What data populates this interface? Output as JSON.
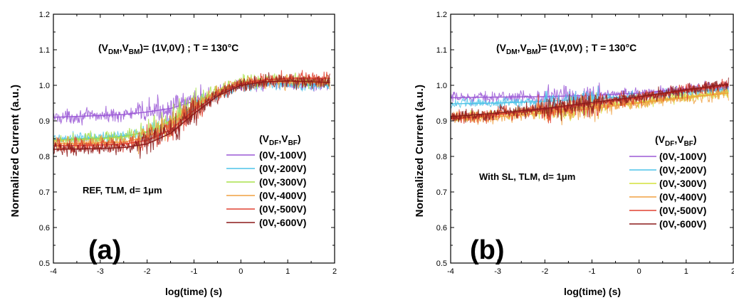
{
  "chart_data": [
    {
      "type": "line",
      "panel_label": "(a)",
      "condition": {
        "prefix": "(V",
        "s1": "DM",
        "mid": ",V",
        "s2": "BM",
        "suffix": ")= (1V,0V) ; T = 130°C"
      },
      "sample_label": "REF, TLM, d= 1μm",
      "xlabel": "log(time) (s)",
      "ylabel": "Normalized Current (a.u.)",
      "xlim": [
        -4,
        2
      ],
      "ylim": [
        0.5,
        1.2
      ],
      "xticks": [
        "-4",
        "-3",
        "-2",
        "-1",
        "0",
        "1",
        "2"
      ],
      "yticks": [
        "0.5",
        "0.6",
        "0.7",
        "0.8",
        "0.9",
        "1.0",
        "1.1",
        "1.2"
      ],
      "legend_title": {
        "prefix": "(V",
        "s1": "DF",
        "mid": ",V",
        "s2": "BF",
        "suffix": ")"
      },
      "series": [
        {
          "name": "(0V,-100V)",
          "color": "#9b59d6",
          "noise": 0.012,
          "x": [
            -4,
            -3,
            -2.5,
            -2,
            -1.5,
            -1,
            -0.5,
            0,
            0.5,
            1,
            1.5,
            1.9
          ],
          "y": [
            0.91,
            0.915,
            0.918,
            0.925,
            0.935,
            0.955,
            0.98,
            1.0,
            1.005,
            1.005,
            1.003,
            1.003
          ]
        },
        {
          "name": "(0V,-200V)",
          "color": "#4dc3e8",
          "noise": 0.011,
          "x": [
            -4,
            -3,
            -2.5,
            -2,
            -1.5,
            -1,
            -0.5,
            0,
            0.5,
            1,
            1.5,
            1.9
          ],
          "y": [
            0.848,
            0.852,
            0.858,
            0.868,
            0.89,
            0.935,
            0.972,
            0.998,
            1.005,
            1.003,
            1.0,
            1.0
          ]
        },
        {
          "name": "(0V,-300V)",
          "color": "#a8e04a",
          "noise": 0.012,
          "x": [
            -4,
            -3,
            -2.5,
            -2,
            -1.5,
            -1,
            -0.5,
            0,
            0.5,
            1,
            1.5,
            1.9
          ],
          "y": [
            0.845,
            0.85,
            0.855,
            0.87,
            0.9,
            0.945,
            0.985,
            1.01,
            1.015,
            1.015,
            1.012,
            1.01
          ]
        },
        {
          "name": "(0V,-400V)",
          "color": "#f0a040",
          "noise": 0.012,
          "x": [
            -4,
            -3,
            -2.5,
            -2,
            -1.5,
            -1,
            -0.5,
            0,
            0.5,
            1,
            1.5,
            1.9
          ],
          "y": [
            0.835,
            0.838,
            0.84,
            0.855,
            0.89,
            0.94,
            0.98,
            1.005,
            1.01,
            1.01,
            1.008,
            1.005
          ]
        },
        {
          "name": "(0V,-500V)",
          "color": "#e04030",
          "noise": 0.013,
          "x": [
            -4,
            -3,
            -2.5,
            -2,
            -1.5,
            -1,
            -0.5,
            0,
            0.5,
            1,
            1.5,
            1.9
          ],
          "y": [
            0.83,
            0.832,
            0.835,
            0.845,
            0.875,
            0.93,
            0.975,
            1.005,
            1.015,
            1.02,
            1.02,
            1.02
          ]
        },
        {
          "name": "(0V,-600V)",
          "color": "#8b1a1a",
          "noise": 0.012,
          "x": [
            -4,
            -3,
            -2.5,
            -2,
            -1.5,
            -1,
            -0.5,
            0,
            0.5,
            1,
            1.5,
            1.9
          ],
          "y": [
            0.82,
            0.822,
            0.825,
            0.835,
            0.865,
            0.92,
            0.97,
            1.0,
            1.01,
            1.012,
            1.01,
            1.008
          ]
        }
      ]
    },
    {
      "type": "line",
      "panel_label": "(b)",
      "condition": {
        "prefix": "(V",
        "s1": "DM",
        "mid": ",V",
        "s2": "BM",
        "suffix": ")= (1V,0V) ; T = 130°C"
      },
      "sample_label": "With SL, TLM, d= 1μm",
      "xlabel": "log(time) (s)",
      "ylabel": "Normalized Current (a.u.)",
      "xlim": [
        -4,
        2
      ],
      "ylim": [
        0.5,
        1.2
      ],
      "xticks": [
        "-4",
        "-3",
        "-2",
        "-1",
        "0",
        "1",
        "2"
      ],
      "yticks": [
        "0.5",
        "0.6",
        "0.7",
        "0.8",
        "0.9",
        "1.0",
        "1.1",
        "1.2"
      ],
      "legend_title": {
        "prefix": "(V",
        "s1": "DF",
        "mid": ",V",
        "s2": "BF",
        "suffix": ")"
      },
      "series": [
        {
          "name": "(0V,-100V)",
          "color": "#9b59d6",
          "noise": 0.01,
          "x": [
            -4,
            -3,
            -2,
            -1,
            0,
            1,
            1.9
          ],
          "y": [
            0.965,
            0.967,
            0.968,
            0.972,
            0.978,
            0.99,
            0.995
          ]
        },
        {
          "name": "(0V,-200V)",
          "color": "#4dc3e8",
          "noise": 0.009,
          "x": [
            -4,
            -3,
            -2,
            -1,
            0,
            1,
            1.9
          ],
          "y": [
            0.948,
            0.95,
            0.955,
            0.962,
            0.97,
            0.98,
            0.99
          ]
        },
        {
          "name": "(0V,-300V)",
          "color": "#d4e03a",
          "noise": 0.01,
          "x": [
            -4,
            -3,
            -2,
            -1,
            0,
            1,
            1.9
          ],
          "y": [
            0.91,
            0.918,
            0.928,
            0.94,
            0.952,
            0.968,
            0.98
          ]
        },
        {
          "name": "(0V,-400V)",
          "color": "#f0a040",
          "noise": 0.012,
          "x": [
            -4,
            -3,
            -2,
            -1,
            0,
            1,
            1.9
          ],
          "y": [
            0.905,
            0.912,
            0.922,
            0.935,
            0.95,
            0.965,
            0.978
          ]
        },
        {
          "name": "(0V,-500V)",
          "color": "#e04030",
          "noise": 0.012,
          "x": [
            -4,
            -3,
            -2,
            -1,
            0,
            1,
            1.9
          ],
          "y": [
            0.905,
            0.918,
            0.932,
            0.948,
            0.965,
            0.985,
            1.0
          ]
        },
        {
          "name": "(0V,-600V)",
          "color": "#8b1a1a",
          "noise": 0.011,
          "x": [
            -4,
            -3,
            -2,
            -1,
            0,
            1,
            1.9
          ],
          "y": [
            0.912,
            0.922,
            0.935,
            0.952,
            0.968,
            0.988,
            1.003
          ]
        }
      ]
    }
  ]
}
